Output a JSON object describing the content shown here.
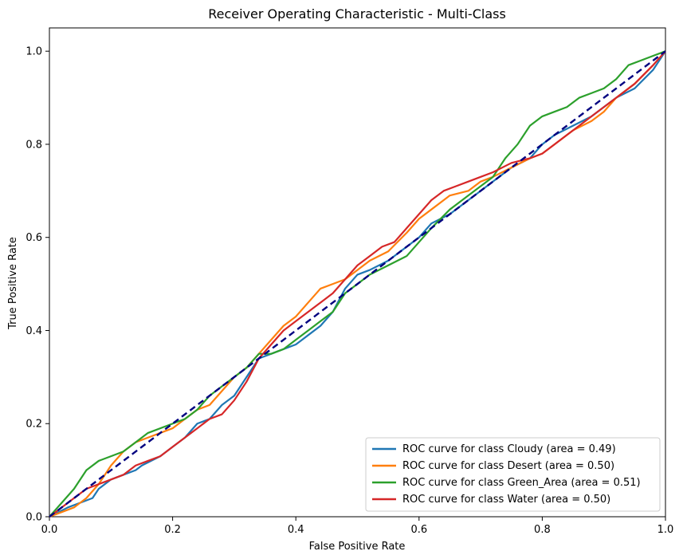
{
  "chart_data": {
    "type": "line",
    "title": "Receiver Operating Characteristic - Multi-Class",
    "xlabel": "False Positive Rate",
    "ylabel": "True Positive Rate",
    "xlim": [
      0.0,
      1.0
    ],
    "ylim": [
      0.0,
      1.05
    ],
    "x_ticks": [
      "0.0",
      "0.2",
      "0.4",
      "0.6",
      "0.8",
      "1.0"
    ],
    "y_ticks": [
      "0.0",
      "0.2",
      "0.4",
      "0.6",
      "0.8",
      "1.0"
    ],
    "grid": false,
    "legend_position": "lower-right",
    "series": [
      {
        "name": "ROC curve for class Cloudy (area = 0.49)",
        "color": "#1f77b4",
        "points": [
          [
            0,
            0
          ],
          [
            0.03,
            0.02
          ],
          [
            0.05,
            0.03
          ],
          [
            0.07,
            0.04
          ],
          [
            0.08,
            0.06
          ],
          [
            0.1,
            0.08
          ],
          [
            0.12,
            0.09
          ],
          [
            0.14,
            0.1
          ],
          [
            0.15,
            0.11
          ],
          [
            0.18,
            0.13
          ],
          [
            0.2,
            0.15
          ],
          [
            0.22,
            0.17
          ],
          [
            0.24,
            0.2
          ],
          [
            0.26,
            0.21
          ],
          [
            0.28,
            0.24
          ],
          [
            0.3,
            0.26
          ],
          [
            0.32,
            0.3
          ],
          [
            0.34,
            0.34
          ],
          [
            0.36,
            0.35
          ],
          [
            0.38,
            0.36
          ],
          [
            0.4,
            0.37
          ],
          [
            0.42,
            0.39
          ],
          [
            0.44,
            0.41
          ],
          [
            0.46,
            0.44
          ],
          [
            0.48,
            0.49
          ],
          [
            0.5,
            0.52
          ],
          [
            0.52,
            0.53
          ],
          [
            0.55,
            0.55
          ],
          [
            0.58,
            0.58
          ],
          [
            0.6,
            0.6
          ],
          [
            0.62,
            0.63
          ],
          [
            0.65,
            0.65
          ],
          [
            0.68,
            0.68
          ],
          [
            0.7,
            0.7
          ],
          [
            0.72,
            0.72
          ],
          [
            0.75,
            0.75
          ],
          [
            0.78,
            0.77
          ],
          [
            0.8,
            0.8
          ],
          [
            0.82,
            0.82
          ],
          [
            0.85,
            0.84
          ],
          [
            0.88,
            0.86
          ],
          [
            0.9,
            0.88
          ],
          [
            0.92,
            0.9
          ],
          [
            0.95,
            0.92
          ],
          [
            0.98,
            0.96
          ],
          [
            1.0,
            1.0
          ]
        ]
      },
      {
        "name": "ROC curve for class Desert (area = 0.50)",
        "color": "#ff7f0e",
        "points": [
          [
            0,
            0
          ],
          [
            0.02,
            0.01
          ],
          [
            0.04,
            0.02
          ],
          [
            0.06,
            0.04
          ],
          [
            0.08,
            0.07
          ],
          [
            0.1,
            0.11
          ],
          [
            0.12,
            0.14
          ],
          [
            0.14,
            0.16
          ],
          [
            0.16,
            0.17
          ],
          [
            0.2,
            0.19
          ],
          [
            0.22,
            0.21
          ],
          [
            0.24,
            0.23
          ],
          [
            0.26,
            0.24
          ],
          [
            0.28,
            0.27
          ],
          [
            0.3,
            0.3
          ],
          [
            0.32,
            0.32
          ],
          [
            0.34,
            0.35
          ],
          [
            0.36,
            0.38
          ],
          [
            0.38,
            0.41
          ],
          [
            0.4,
            0.43
          ],
          [
            0.42,
            0.46
          ],
          [
            0.44,
            0.49
          ],
          [
            0.46,
            0.5
          ],
          [
            0.48,
            0.51
          ],
          [
            0.5,
            0.53
          ],
          [
            0.52,
            0.55
          ],
          [
            0.55,
            0.57
          ],
          [
            0.58,
            0.61
          ],
          [
            0.6,
            0.64
          ],
          [
            0.62,
            0.66
          ],
          [
            0.65,
            0.69
          ],
          [
            0.68,
            0.7
          ],
          [
            0.7,
            0.72
          ],
          [
            0.72,
            0.73
          ],
          [
            0.75,
            0.75
          ],
          [
            0.78,
            0.77
          ],
          [
            0.8,
            0.78
          ],
          [
            0.82,
            0.8
          ],
          [
            0.85,
            0.83
          ],
          [
            0.88,
            0.85
          ],
          [
            0.9,
            0.87
          ],
          [
            0.92,
            0.9
          ],
          [
            0.95,
            0.93
          ],
          [
            0.98,
            0.97
          ],
          [
            1.0,
            1.0
          ]
        ]
      },
      {
        "name": "ROC curve for class Green_Area (area = 0.51)",
        "color": "#2ca02c",
        "points": [
          [
            0,
            0
          ],
          [
            0.02,
            0.03
          ],
          [
            0.04,
            0.06
          ],
          [
            0.06,
            0.1
          ],
          [
            0.08,
            0.12
          ],
          [
            0.1,
            0.13
          ],
          [
            0.12,
            0.14
          ],
          [
            0.14,
            0.16
          ],
          [
            0.16,
            0.18
          ],
          [
            0.2,
            0.2
          ],
          [
            0.22,
            0.21
          ],
          [
            0.24,
            0.23
          ],
          [
            0.26,
            0.26
          ],
          [
            0.28,
            0.28
          ],
          [
            0.3,
            0.3
          ],
          [
            0.32,
            0.32
          ],
          [
            0.34,
            0.35
          ],
          [
            0.36,
            0.35
          ],
          [
            0.38,
            0.36
          ],
          [
            0.4,
            0.38
          ],
          [
            0.42,
            0.4
          ],
          [
            0.44,
            0.42
          ],
          [
            0.46,
            0.44
          ],
          [
            0.48,
            0.48
          ],
          [
            0.5,
            0.5
          ],
          [
            0.52,
            0.52
          ],
          [
            0.55,
            0.54
          ],
          [
            0.58,
            0.56
          ],
          [
            0.6,
            0.59
          ],
          [
            0.62,
            0.62
          ],
          [
            0.65,
            0.66
          ],
          [
            0.68,
            0.69
          ],
          [
            0.7,
            0.71
          ],
          [
            0.72,
            0.73
          ],
          [
            0.74,
            0.77
          ],
          [
            0.76,
            0.8
          ],
          [
            0.78,
            0.84
          ],
          [
            0.8,
            0.86
          ],
          [
            0.82,
            0.87
          ],
          [
            0.84,
            0.88
          ],
          [
            0.86,
            0.9
          ],
          [
            0.88,
            0.91
          ],
          [
            0.9,
            0.92
          ],
          [
            0.92,
            0.94
          ],
          [
            0.94,
            0.97
          ],
          [
            0.96,
            0.98
          ],
          [
            0.98,
            0.99
          ],
          [
            1.0,
            1.0
          ]
        ]
      },
      {
        "name": "ROC curve for class Water (area = 0.50)",
        "color": "#d62728",
        "points": [
          [
            0,
            0
          ],
          [
            0.02,
            0.02
          ],
          [
            0.04,
            0.04
          ],
          [
            0.06,
            0.06
          ],
          [
            0.08,
            0.07
          ],
          [
            0.1,
            0.08
          ],
          [
            0.12,
            0.09
          ],
          [
            0.14,
            0.11
          ],
          [
            0.16,
            0.12
          ],
          [
            0.18,
            0.13
          ],
          [
            0.2,
            0.15
          ],
          [
            0.22,
            0.17
          ],
          [
            0.24,
            0.19
          ],
          [
            0.26,
            0.21
          ],
          [
            0.28,
            0.22
          ],
          [
            0.3,
            0.25
          ],
          [
            0.32,
            0.29
          ],
          [
            0.34,
            0.34
          ],
          [
            0.36,
            0.37
          ],
          [
            0.38,
            0.4
          ],
          [
            0.4,
            0.42
          ],
          [
            0.42,
            0.44
          ],
          [
            0.44,
            0.46
          ],
          [
            0.46,
            0.48
          ],
          [
            0.48,
            0.51
          ],
          [
            0.5,
            0.54
          ],
          [
            0.52,
            0.56
          ],
          [
            0.54,
            0.58
          ],
          [
            0.56,
            0.59
          ],
          [
            0.58,
            0.62
          ],
          [
            0.6,
            0.65
          ],
          [
            0.62,
            0.68
          ],
          [
            0.64,
            0.7
          ],
          [
            0.66,
            0.71
          ],
          [
            0.68,
            0.72
          ],
          [
            0.7,
            0.73
          ],
          [
            0.72,
            0.74
          ],
          [
            0.75,
            0.76
          ],
          [
            0.78,
            0.77
          ],
          [
            0.8,
            0.78
          ],
          [
            0.82,
            0.8
          ],
          [
            0.84,
            0.82
          ],
          [
            0.86,
            0.84
          ],
          [
            0.88,
            0.86
          ],
          [
            0.9,
            0.88
          ],
          [
            0.92,
            0.9
          ],
          [
            0.95,
            0.93
          ],
          [
            0.98,
            0.97
          ],
          [
            1.0,
            1.0
          ]
        ]
      }
    ],
    "reference_line": {
      "color": "#000080",
      "style": "dashed",
      "points": [
        [
          0,
          0
        ],
        [
          1,
          1
        ]
      ]
    }
  }
}
